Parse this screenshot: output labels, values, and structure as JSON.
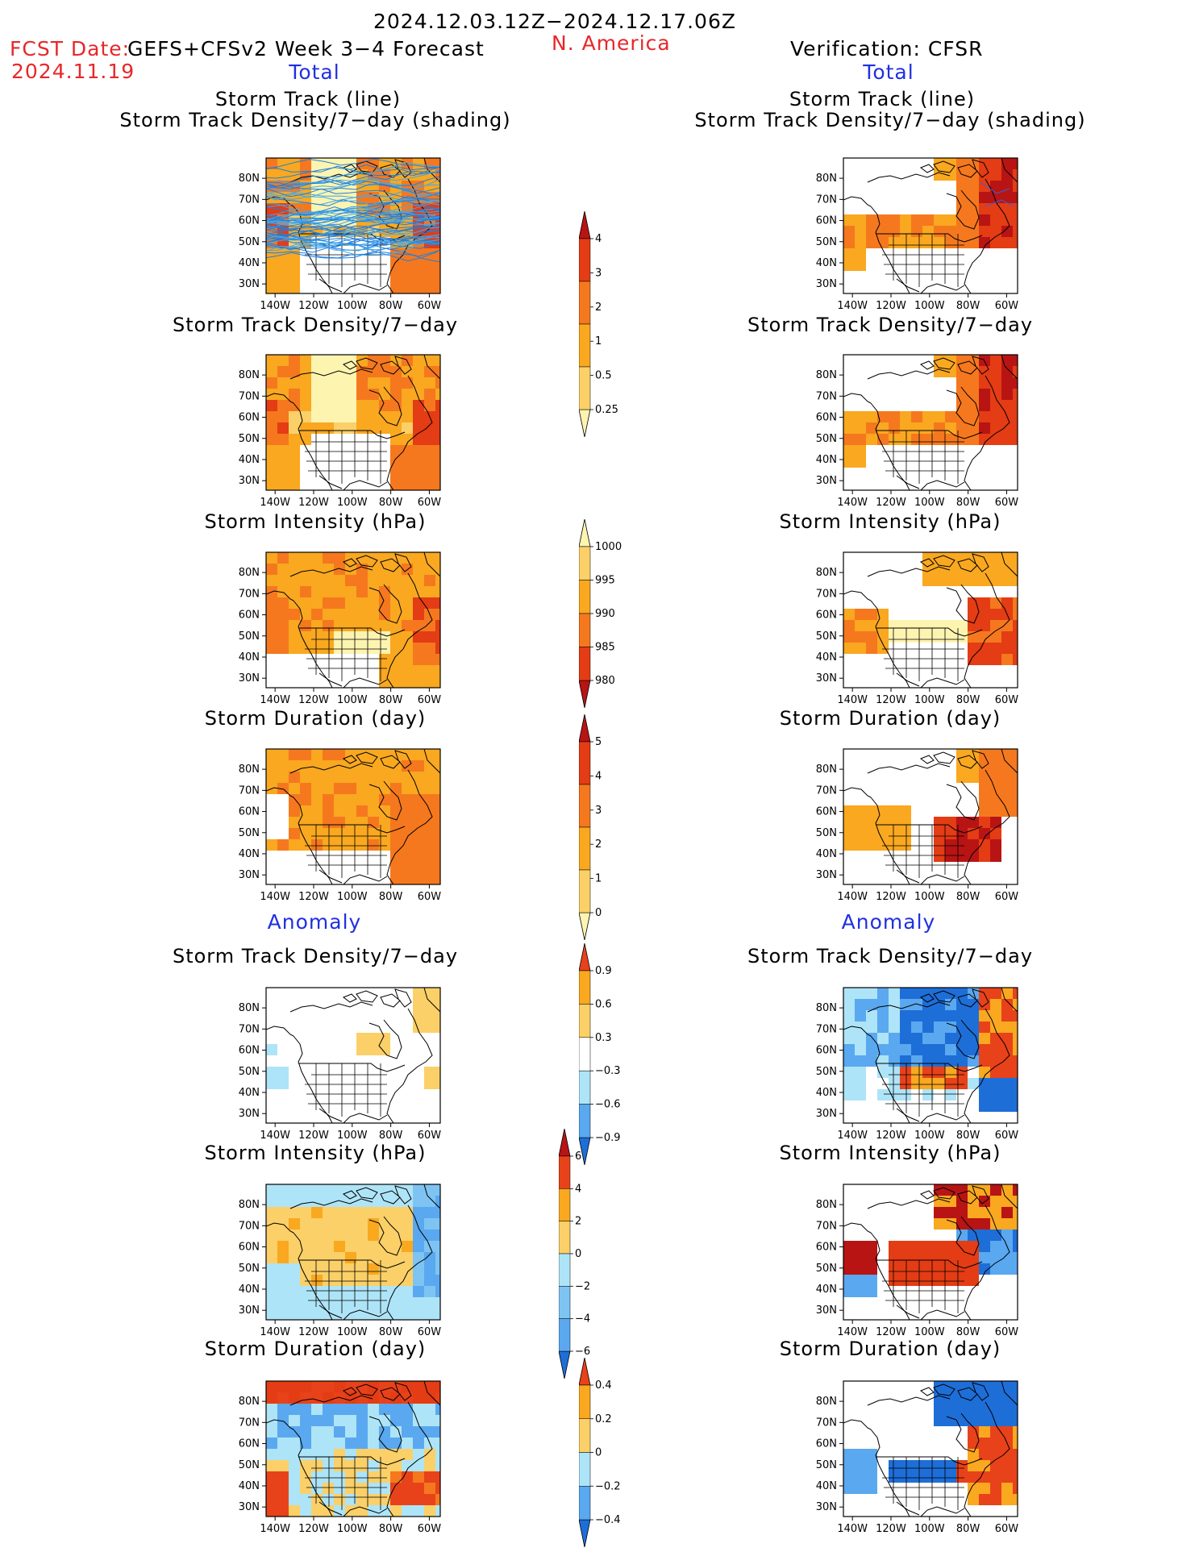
{
  "header": {
    "period": "2024.12.03.12Z−2024.12.17.06Z",
    "fcst_label": "FCST Date:",
    "fcst_date": "2024.11.19",
    "model": "GEFS+CFSv2 Week 3−4 Forecast",
    "region": "N. America",
    "verification": "Verification: CFSR"
  },
  "sections": {
    "total": "Total",
    "anomaly": "Anomaly"
  },
  "titles": {
    "track_line": "Storm Track (line)",
    "track_shading": "Storm Track Density/7−day (shading)",
    "density": "Storm Track Density/7−day",
    "intensity": "Storm Intensity (hPa)",
    "duration": "Storm Duration (day)"
  },
  "axes": {
    "lat_labels": [
      "80N",
      "70N",
      "60N",
      "50N",
      "40N",
      "30N"
    ],
    "lon_labels": [
      "140W",
      "120W",
      "100W",
      "80W",
      "60W"
    ]
  },
  "colorbars": [
    {
      "name": "density-total",
      "labels": [
        "4",
        "3",
        "2",
        "1",
        "0.5",
        "0.25"
      ],
      "colors": [
        "#b81414",
        "#e43c14",
        "#f5781e",
        "#f9a820",
        "#fbd068",
        "#fdf4b0"
      ]
    },
    {
      "name": "intensity-total",
      "labels": [
        "1000",
        "995",
        "990",
        "985",
        "980"
      ],
      "colors": [
        "#fdf4b0",
        "#fbd068",
        "#f9a820",
        "#f5781e",
        "#e43c14",
        "#b81414"
      ]
    },
    {
      "name": "duration-total",
      "labels": [
        "5",
        "4",
        "3",
        "2",
        "1",
        "0"
      ],
      "colors": [
        "#b81414",
        "#e43c14",
        "#f5781e",
        "#f9a820",
        "#fbd068",
        "#fdf4b0"
      ]
    },
    {
      "name": "density-anom",
      "labels": [
        "0.9",
        "0.6",
        "0.3",
        "−0.3",
        "−0.6",
        "−0.9"
      ],
      "colors": [
        "#e8421a",
        "#f9a820",
        "#fbd068",
        "#ffffff",
        "#aee4f7",
        "#5aa8ef",
        "#1e6ed8"
      ]
    },
    {
      "name": "intensity-anom",
      "labels": [
        "6",
        "4",
        "2",
        "0",
        "−2",
        "−4",
        "−6"
      ],
      "colors": [
        "#b81414",
        "#e8421a",
        "#f9a820",
        "#fbd068",
        "#aee4f7",
        "#7ec4f3",
        "#5aa8ef",
        "#1e6ed8"
      ]
    },
    {
      "name": "duration-anom",
      "labels": [
        "0.4",
        "0.2",
        "0",
        "−0.2",
        "−0.4"
      ],
      "colors": [
        "#e8421a",
        "#f9a820",
        "#fbd068",
        "#aee4f7",
        "#5aa8ef",
        "#1e6ed8"
      ]
    }
  ]
}
